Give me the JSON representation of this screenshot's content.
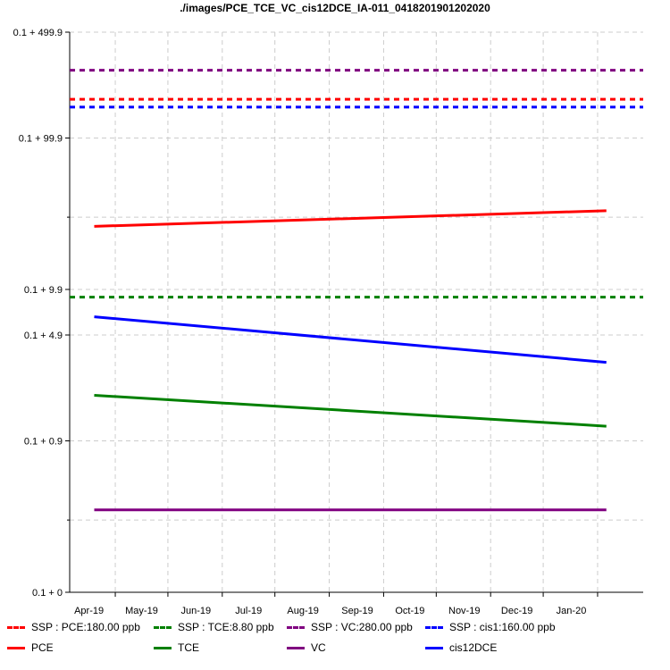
{
  "chart_data": {
    "type": "line",
    "title": "./images/PCE_TCE_VC_cis12DCE_IA-011_0418201901202020",
    "xlabel": "",
    "ylabel": "",
    "x_tick_labels": [
      "Apr-19",
      "May-19",
      "Jun-19",
      "Jul-19",
      "Aug-19",
      "Sep-19",
      "Oct-19",
      "Nov-19",
      "Dec-19",
      "Jan-20"
    ],
    "x_tick_dates": [
      "2019-04-15",
      "2019-05-15",
      "2019-06-15",
      "2019-07-15",
      "2019-08-15",
      "2019-09-15",
      "2019-10-15",
      "2019-11-15",
      "2019-12-15",
      "2020-01-15"
    ],
    "x_range": [
      "2019-03-20",
      "2020-02-10"
    ],
    "y_scale": "log(0.1 + value)",
    "y_tick_labels": [
      "0.1 + 0",
      "0.1 + 0.9",
      "0.1 + 4.9",
      "0.1 + 9.9",
      "0.1 + 99.9",
      "0.1 + 499.9"
    ],
    "y_tick_values": [
      0,
      0.9,
      4.9,
      9.9,
      99.9,
      499.9
    ],
    "y_minor_values": [
      0.2,
      29.9
    ],
    "grid": true,
    "legend_position": "bottom",
    "series": [
      {
        "name": "SSP : PCE:180.00 ppb",
        "color": "#ff0000",
        "dash": true,
        "x": [
          "2019-03-20",
          "2020-02-10"
        ],
        "y": [
          180,
          180
        ]
      },
      {
        "name": "SSP : TCE:8.80 ppb",
        "color": "#008000",
        "dash": true,
        "x": [
          "2019-03-20",
          "2020-02-10"
        ],
        "y": [
          8.8,
          8.8
        ]
      },
      {
        "name": "SSP : VC:280.00 ppb",
        "color": "#800080",
        "dash": true,
        "x": [
          "2019-03-20",
          "2020-02-10"
        ],
        "y": [
          280,
          280
        ]
      },
      {
        "name": "SSP : cis1:160.00 ppb",
        "color": "#0000ff",
        "dash": true,
        "x": [
          "2019-03-20",
          "2020-02-10"
        ],
        "y": [
          160,
          160
        ]
      },
      {
        "name": "PCE",
        "color": "#ff0000",
        "dash": false,
        "x": [
          "2019-04-03",
          "2020-01-20"
        ],
        "y": [
          26,
          33
        ]
      },
      {
        "name": "TCE",
        "color": "#008000",
        "dash": false,
        "x": [
          "2019-04-03",
          "2020-01-20"
        ],
        "y": [
          1.9,
          1.15
        ]
      },
      {
        "name": "VC",
        "color": "#800080",
        "dash": false,
        "x": [
          "2019-04-03",
          "2020-01-20"
        ],
        "y": [
          0.25,
          0.25
        ]
      },
      {
        "name": "cis12DCE",
        "color": "#0000ff",
        "dash": false,
        "x": [
          "2019-04-03",
          "2020-01-20"
        ],
        "y": [
          6.5,
          3.2
        ]
      }
    ]
  }
}
